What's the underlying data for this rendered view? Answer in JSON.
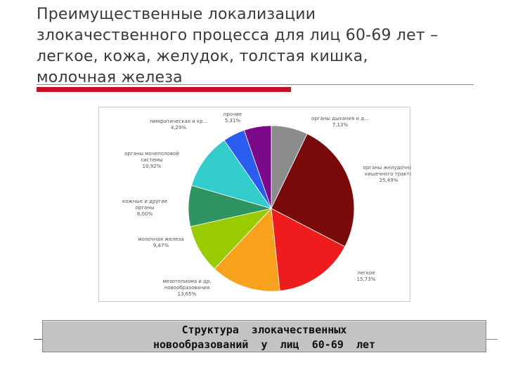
{
  "slide": {
    "title_lines": [
      "Преимущественные  локализации",
      "злокачественного процесса для лиц 60-69 лет –",
      "легкое, кожа, желудок, толстая кишка,",
      "молочная железа"
    ],
    "accent_color": "#c8101e"
  },
  "caption": {
    "lines": [
      "Структура  злокачественных",
      "новообразований  у  лиц  60-69  лет"
    ]
  },
  "chart_data": {
    "type": "pie",
    "title": "",
    "start_angle_deg": 0,
    "direction": "clockwise",
    "slices": [
      {
        "label": [
          "органы дыхания и д..."
        ],
        "value_label": "7,13%",
        "value": 7.13,
        "color": "#8c8c8c"
      },
      {
        "label": [
          "органы желудочно-",
          "кишечного тракта"
        ],
        "value_label": "25,49%",
        "value": 25.49,
        "color": "#7a0a0a"
      },
      {
        "label": [
          "легкое"
        ],
        "value_label": "15,73%",
        "value": 15.73,
        "color": "#ee1c1c"
      },
      {
        "label": [
          "мезотелиома и др.",
          "новообразования"
        ],
        "value_label": "13,65%",
        "value": 13.65,
        "color": "#f7a11c"
      },
      {
        "label": [
          "молочная железа"
        ],
        "value_label": "9,47%",
        "value": 9.47,
        "color": "#99cc00"
      },
      {
        "label": [
          "кожные и другие",
          "органы"
        ],
        "value_label": "8,00%",
        "value": 8.0,
        "color": "#2e9461"
      },
      {
        "label": [
          "органы мочеполовой",
          "системы"
        ],
        "value_label": "10,92%",
        "value": 10.92,
        "color": "#33cccc"
      },
      {
        "label": [
          "лимфатическая и кр..."
        ],
        "value_label": "4,29%",
        "value": 4.29,
        "color": "#2a5cf0"
      },
      {
        "label": [
          "прочие"
        ],
        "value_label": "5,31%",
        "value": 5.31,
        "color": "#7a0a8a"
      }
    ]
  }
}
